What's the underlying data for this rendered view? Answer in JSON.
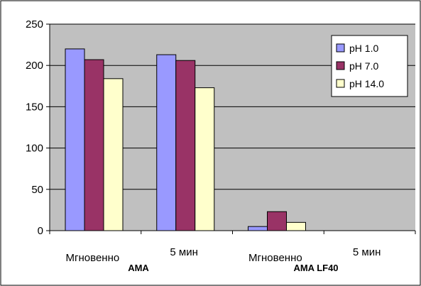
{
  "chart_data": {
    "type": "bar",
    "title": "",
    "xlabel": "",
    "ylabel": "",
    "ylim": [
      0,
      250
    ],
    "yticks": [
      0,
      50,
      100,
      150,
      200,
      250
    ],
    "grid": true,
    "legend_position": "top-right",
    "categories": [
      "Мгновенно",
      "5 мин",
      "Мгновенно",
      "5 мин"
    ],
    "groups": [
      {
        "label": "AMA",
        "categories": [
          0,
          1
        ]
      },
      {
        "label": "AMA LF40",
        "categories": [
          2,
          3
        ]
      }
    ],
    "series": [
      {
        "name": "pH 1.0",
        "color": "#9999ff",
        "values": [
          220,
          213,
          5,
          0
        ]
      },
      {
        "name": "pH 7.0",
        "color": "#993366",
        "values": [
          207,
          206,
          23,
          0
        ]
      },
      {
        "name": "pH 14.0",
        "color": "#ffffcc",
        "values": [
          184,
          173,
          10,
          0
        ]
      }
    ],
    "plot_background": "#c0c0c0",
    "page_background": "#ffffff"
  }
}
